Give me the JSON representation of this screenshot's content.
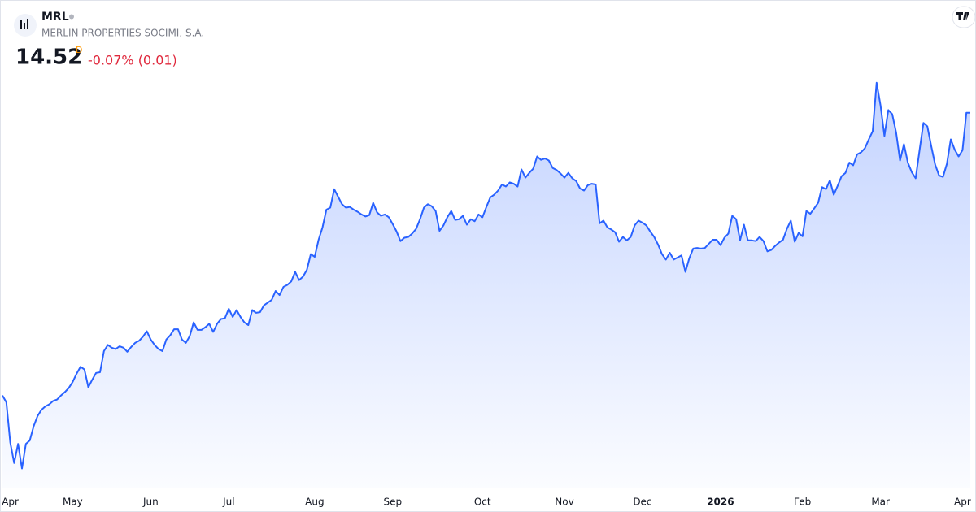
{
  "chart_data": {
    "type": "line",
    "symbol": "MRL",
    "name": "MERLIN PROPERTIES SOCIMI, S.A.",
    "price": "14.52",
    "price_flag": "D",
    "change": "-0.07% (0.01)",
    "color": "#2962ff",
    "values": [
      10.38,
      10.28,
      9.69,
      9.39,
      9.67,
      9.31,
      9.67,
      9.72,
      9.93,
      10.08,
      10.17,
      10.22,
      10.25,
      10.3,
      10.32,
      10.38,
      10.43,
      10.49,
      10.58,
      10.7,
      10.8,
      10.76,
      10.5,
      10.61,
      10.71,
      10.72,
      11.03,
      11.12,
      11.08,
      11.06,
      11.1,
      11.08,
      11.02,
      11.09,
      11.15,
      11.18,
      11.24,
      11.32,
      11.2,
      11.12,
      11.06,
      11.03,
      11.2,
      11.26,
      11.35,
      11.35,
      11.2,
      11.15,
      11.25,
      11.45,
      11.34,
      11.34,
      11.38,
      11.43,
      11.31,
      11.43,
      11.5,
      11.51,
      11.65,
      11.53,
      11.63,
      11.53,
      11.45,
      11.41,
      11.63,
      11.59,
      11.6,
      11.7,
      11.74,
      11.78,
      11.91,
      11.85,
      11.97,
      12.0,
      12.05,
      12.19,
      12.07,
      12.12,
      12.22,
      12.45,
      12.41,
      12.66,
      12.84,
      13.1,
      13.13,
      13.4,
      13.29,
      13.18,
      13.13,
      13.14,
      13.1,
      13.07,
      13.03,
      13.0,
      13.02,
      13.2,
      13.06,
      13.01,
      13.03,
      12.99,
      12.89,
      12.78,
      12.64,
      12.69,
      12.7,
      12.75,
      12.82,
      12.96,
      13.13,
      13.18,
      13.15,
      13.08,
      12.79,
      12.87,
      12.99,
      13.08,
      12.95,
      12.96,
      13.01,
      12.88,
      12.96,
      12.93,
      13.03,
      12.99,
      13.14,
      13.28,
      13.32,
      13.38,
      13.47,
      13.44,
      13.5,
      13.48,
      13.44,
      13.69,
      13.57,
      13.64,
      13.7,
      13.88,
      13.83,
      13.85,
      13.82,
      13.71,
      13.68,
      13.63,
      13.57,
      13.64,
      13.56,
      13.52,
      13.41,
      13.38,
      13.46,
      13.48,
      13.47,
      12.9,
      12.94,
      12.84,
      12.81,
      12.77,
      12.63,
      12.7,
      12.65,
      12.7,
      12.87,
      12.94,
      12.91,
      12.87,
      12.78,
      12.7,
      12.59,
      12.45,
      12.37,
      12.47,
      12.37,
      12.4,
      12.43,
      12.19,
      12.39,
      12.53,
      12.54,
      12.53,
      12.54,
      12.6,
      12.66,
      12.66,
      12.58,
      12.69,
      12.75,
      13.01,
      12.96,
      12.65,
      12.88,
      12.65,
      12.65,
      12.64,
      12.7,
      12.64,
      12.49,
      12.51,
      12.57,
      12.62,
      12.66,
      12.82,
      12.94,
      12.63,
      12.76,
      12.71,
      13.08,
      13.04,
      13.12,
      13.2,
      13.43,
      13.4,
      13.53,
      13.32,
      13.45,
      13.59,
      13.64,
      13.79,
      13.75,
      13.91,
      13.94,
      14.0,
      14.13,
      14.25,
      14.96,
      14.63,
      14.18,
      14.56,
      14.5,
      14.23,
      13.82,
      14.06,
      13.79,
      13.65,
      13.56,
      13.97,
      14.37,
      14.32,
      14.03,
      13.76,
      13.6,
      13.58,
      13.77,
      14.13,
      13.98,
      13.88,
      13.97,
      14.52,
      14.52
    ],
    "xticks": [
      {
        "value": 2,
        "label": "Apr"
      },
      {
        "value": 18,
        "label": "May"
      },
      {
        "value": 38,
        "label": "Jun"
      },
      {
        "value": 58,
        "label": "Jul"
      },
      {
        "value": 80,
        "label": "Aug"
      },
      {
        "value": 100,
        "label": "Sep"
      },
      {
        "value": 123,
        "label": "Oct"
      },
      {
        "value": 144,
        "label": "Nov"
      },
      {
        "value": 164,
        "label": "Dec"
      },
      {
        "value": 184,
        "label": "2026"
      },
      {
        "value": 205,
        "label": "Feb"
      },
      {
        "value": 225,
        "label": "Mar"
      },
      {
        "value": 246,
        "label": "Apr"
      }
    ],
    "ylim": [
      9.03,
      15.1
    ]
  }
}
